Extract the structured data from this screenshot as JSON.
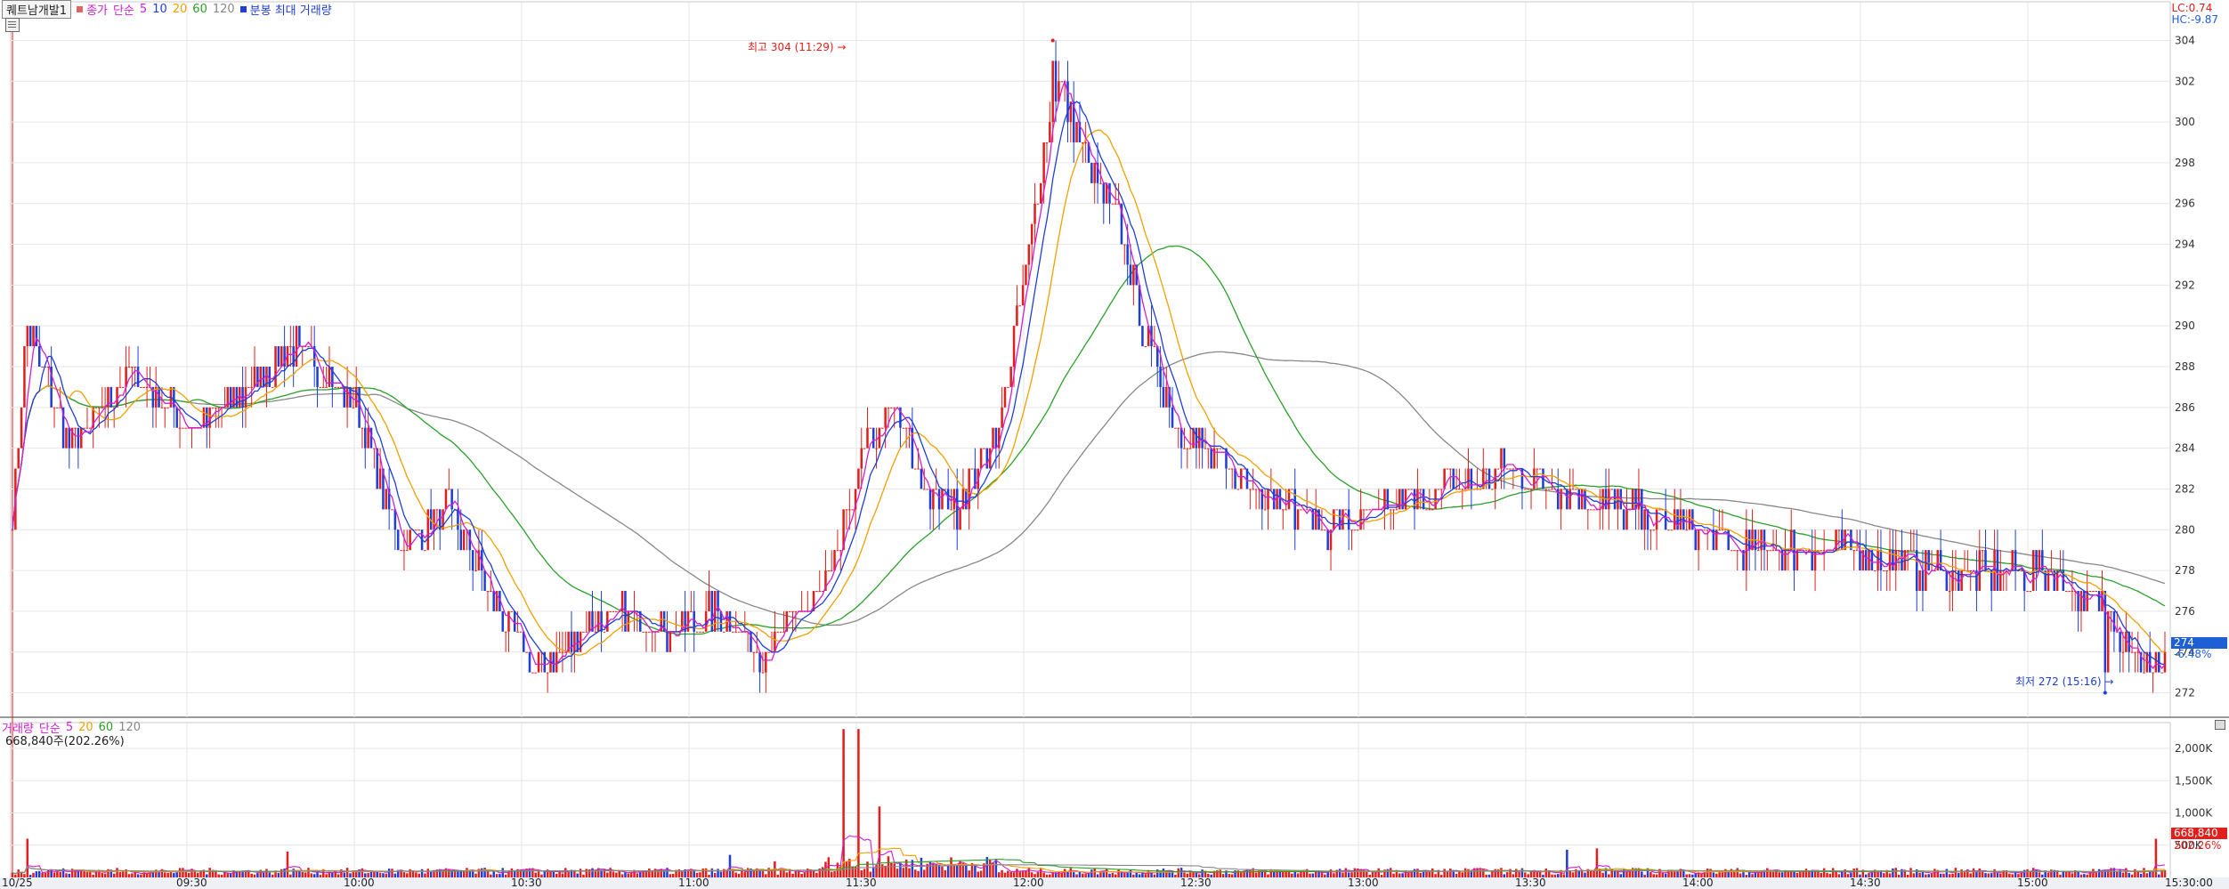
{
  "legend": {
    "box_label": "퀘트남개발1",
    "close_label": "종가",
    "ma_type_label": "단순",
    "ma_periods": [
      "5",
      "10",
      "20",
      "60",
      "120"
    ],
    "ma_colors": [
      "#d01fd0",
      "#1f3fd6",
      "#f0a000",
      "#2aa02a",
      "#888888"
    ],
    "extra_label": "분봉 최대 거래량"
  },
  "price_info": {
    "lc": "LC:0.74",
    "hc": "HC:-9.87"
  },
  "current_price": {
    "value": "274",
    "change": "-6.48%"
  },
  "annotations": {
    "high": "최고 304 (11:29) →",
    "low": "최저 272 (15:16) →"
  },
  "volume_legend": {
    "title": "거래량",
    "ma_type_label": "단순",
    "ma_periods": [
      "5",
      "20",
      "60",
      "120"
    ],
    "info": "668,840주(202.26%)",
    "current_value": "668,840",
    "current_change": "202.26%"
  },
  "colors": {
    "up": "#e0201c",
    "down": "#1f3fd6",
    "ma5": "#d01fd0",
    "ma10": "#1f3fd6",
    "ma20": "#f0a000",
    "ma60": "#2aa02a",
    "ma120": "#888888",
    "grid": "#e6e6e6"
  },
  "chart_data": [
    {
      "type": "candlestick",
      "title": "",
      "x_ticks": [
        "10/25",
        "09:30",
        "10:00",
        "10:30",
        "11:00",
        "11:30",
        "12:00",
        "12:30",
        "13:00",
        "13:30",
        "14:00",
        "14:30",
        "15:00",
        "15:30:00"
      ],
      "y_ticks": [
        304,
        302,
        300,
        298,
        296,
        294,
        292,
        290,
        288,
        286,
        284,
        282,
        280,
        278,
        276,
        274,
        272
      ],
      "ylim": [
        270.8,
        305.2
      ],
      "high": 304,
      "high_time": "11:29",
      "low": 272,
      "low_time": "15:16",
      "last_close": 274,
      "grid": true,
      "close_approx": [
        [
          0,
          281
        ],
        [
          5,
          290
        ],
        [
          20,
          284
        ],
        [
          40,
          288
        ],
        [
          60,
          285
        ],
        [
          80,
          287
        ],
        [
          95,
          289
        ],
        [
          115,
          286
        ],
        [
          130,
          279
        ],
        [
          145,
          281
        ],
        [
          160,
          277
        ],
        [
          175,
          273
        ],
        [
          190,
          275
        ],
        [
          205,
          276
        ],
        [
          220,
          275
        ],
        [
          235,
          276
        ],
        [
          250,
          274
        ],
        [
          265,
          276
        ],
        [
          275,
          278
        ],
        [
          285,
          284
        ],
        [
          295,
          286
        ],
        [
          305,
          282
        ],
        [
          315,
          281
        ],
        [
          330,
          285
        ],
        [
          338,
          292
        ],
        [
          345,
          299
        ],
        [
          350,
          302
        ],
        [
          360,
          298
        ],
        [
          370,
          295
        ],
        [
          378,
          290
        ],
        [
          390,
          285
        ],
        [
          405,
          283
        ],
        [
          420,
          282
        ],
        [
          440,
          280
        ],
        [
          460,
          281
        ],
        [
          480,
          282
        ],
        [
          500,
          283
        ],
        [
          520,
          282
        ],
        [
          540,
          281
        ],
        [
          560,
          280
        ],
        [
          580,
          279
        ],
        [
          600,
          279
        ],
        [
          620,
          279
        ],
        [
          640,
          278
        ],
        [
          660,
          278
        ],
        [
          680,
          278
        ],
        [
          700,
          276
        ],
        [
          715,
          273
        ],
        [
          720,
          274
        ]
      ]
    },
    {
      "type": "bar",
      "title": "거래량",
      "y_ticks": [
        "2,000K",
        "1,500K",
        "1,000K",
        "500K"
      ],
      "ylim": [
        0,
        2400000
      ],
      "last_value": 668840,
      "last_change_pct": 202.26,
      "peaks_approx": [
        [
          5,
          600000
        ],
        [
          92,
          400000
        ],
        [
          240,
          350000
        ],
        [
          255,
          250000
        ],
        [
          278,
          2300000
        ],
        [
          283,
          2300000
        ],
        [
          290,
          1100000
        ],
        [
          520,
          430000
        ],
        [
          530,
          450000
        ],
        [
          717,
          600000
        ]
      ]
    }
  ]
}
